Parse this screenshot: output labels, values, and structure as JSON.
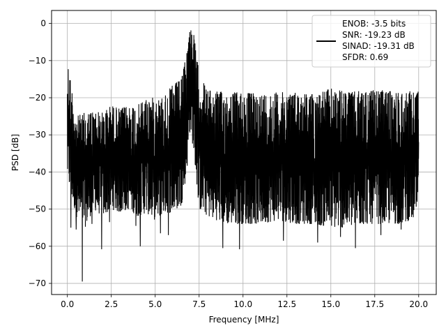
{
  "chart_data": {
    "type": "line",
    "title": "",
    "xlabel": "Frequency [MHz]",
    "ylabel": "PSD [dB]",
    "xlim": [
      -0.9,
      21.0
    ],
    "ylim": [
      -73,
      3.5
    ],
    "xticks": [
      0.0,
      2.5,
      5.0,
      7.5,
      10.0,
      12.5,
      15.0,
      17.5,
      20.0
    ],
    "xtick_labels": [
      "0.0",
      "2.5",
      "5.0",
      "7.5",
      "10.0",
      "12.5",
      "15.0",
      "17.5",
      "20.0"
    ],
    "yticks": [
      0,
      -10,
      -20,
      -30,
      -40,
      -50,
      -60,
      -70
    ],
    "ytick_labels": [
      "0",
      "−10",
      "−20",
      "−30",
      "−40",
      "−50",
      "−60",
      "−70"
    ],
    "grid": true,
    "line_color": "#000000",
    "legend": {
      "placement": "upper-right",
      "entries": [
        "ENOB: -3.5 bits",
        "SNR: -19.23 dB",
        "SINAD: -19.31 dB",
        "SFDR: 0.69"
      ]
    },
    "series": [
      {
        "x": [
          0.0,
          0.5,
          1.0,
          1.5,
          2.0,
          2.5,
          3.0,
          3.5,
          4.0,
          4.5,
          5.0,
          5.5,
          6.0,
          6.5,
          6.8,
          7.0,
          7.2,
          7.5,
          8.0,
          9.0,
          10.0,
          11.0,
          12.0,
          13.0,
          14.0,
          15.0,
          16.0,
          17.0,
          18.0,
          19.0,
          20.0
        ],
        "upper": [
          -9.5,
          -25.0,
          -24.0,
          -23.5,
          -24.0,
          -22.0,
          -23.0,
          -22.0,
          -22.0,
          -20.0,
          -20.0,
          -19.5,
          -16.5,
          -15.0,
          -7.0,
          0.0,
          -3.0,
          -13.5,
          -18.0,
          -18.5,
          -18.5,
          -19.0,
          -18.5,
          -18.5,
          -19.0,
          -17.5,
          -18.5,
          -18.0,
          -18.0,
          -18.5,
          -18.0
        ],
        "lower": [
          -42.0,
          -52.0,
          -55.0,
          -50.0,
          -52.0,
          -50.0,
          -51.0,
          -50.0,
          -52.0,
          -51.0,
          -53.0,
          -51.0,
          -51.0,
          -49.0,
          -40.0,
          -28.0,
          -35.0,
          -50.0,
          -52.0,
          -54.0,
          -54.0,
          -54.0,
          -53.0,
          -54.0,
          -54.0,
          -55.0,
          -55.0,
          -54.0,
          -54.0,
          -54.0,
          -52.0
        ],
        "dips": [
          [
            0.2,
            -55.0
          ],
          [
            0.5,
            -55.5
          ],
          [
            0.85,
            -69.5
          ],
          [
            1.4,
            -54.0
          ],
          [
            1.95,
            -60.8
          ],
          [
            2.4,
            -53.5
          ],
          [
            3.9,
            -54.5
          ],
          [
            4.15,
            -60.0
          ],
          [
            5.3,
            -56.5
          ],
          [
            5.75,
            -57.0
          ],
          [
            8.85,
            -60.5
          ],
          [
            9.8,
            -60.8
          ],
          [
            12.3,
            -58.5
          ],
          [
            14.25,
            -59.0
          ],
          [
            15.55,
            -57.5
          ],
          [
            16.4,
            -60.5
          ],
          [
            17.85,
            -57.0
          ],
          [
            19.0,
            -55.5
          ]
        ]
      }
    ]
  }
}
